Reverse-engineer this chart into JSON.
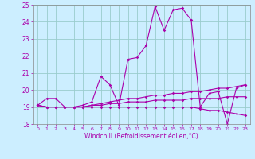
{
  "xlabel": "Windchill (Refroidissement éolien,°C)",
  "bg_color": "#cceeff",
  "line_color": "#aa00aa",
  "grid_color": "#99cccc",
  "xlim": [
    -0.5,
    23.5
  ],
  "ylim": [
    18,
    25
  ],
  "yticks": [
    18,
    19,
    20,
    21,
    22,
    23,
    24,
    25
  ],
  "xticks": [
    0,
    1,
    2,
    3,
    4,
    5,
    6,
    7,
    8,
    9,
    10,
    11,
    12,
    13,
    14,
    15,
    16,
    17,
    18,
    19,
    20,
    21,
    22,
    23
  ],
  "series": [
    [
      19.1,
      19.5,
      19.5,
      19.0,
      19.0,
      19.1,
      19.3,
      20.8,
      20.3,
      19.1,
      21.8,
      21.9,
      22.6,
      24.9,
      23.5,
      24.7,
      24.8,
      24.1,
      19.0,
      19.8,
      19.9,
      18.0,
      20.1,
      20.3
    ],
    [
      19.1,
      19.0,
      19.0,
      19.0,
      19.0,
      19.0,
      19.1,
      19.2,
      19.3,
      19.4,
      19.5,
      19.5,
      19.6,
      19.7,
      19.7,
      19.8,
      19.8,
      19.9,
      19.9,
      20.0,
      20.1,
      20.1,
      20.2,
      20.3
    ],
    [
      19.1,
      19.0,
      19.0,
      19.0,
      19.0,
      19.0,
      19.1,
      19.1,
      19.2,
      19.2,
      19.3,
      19.3,
      19.3,
      19.4,
      19.4,
      19.4,
      19.4,
      19.5,
      19.5,
      19.5,
      19.5,
      19.6,
      19.6,
      19.6
    ],
    [
      19.1,
      19.0,
      19.0,
      19.0,
      19.0,
      19.0,
      19.0,
      19.0,
      19.0,
      19.0,
      19.0,
      19.0,
      19.0,
      19.0,
      19.0,
      19.0,
      19.0,
      19.0,
      18.9,
      18.8,
      18.8,
      18.7,
      18.6,
      18.5
    ]
  ]
}
